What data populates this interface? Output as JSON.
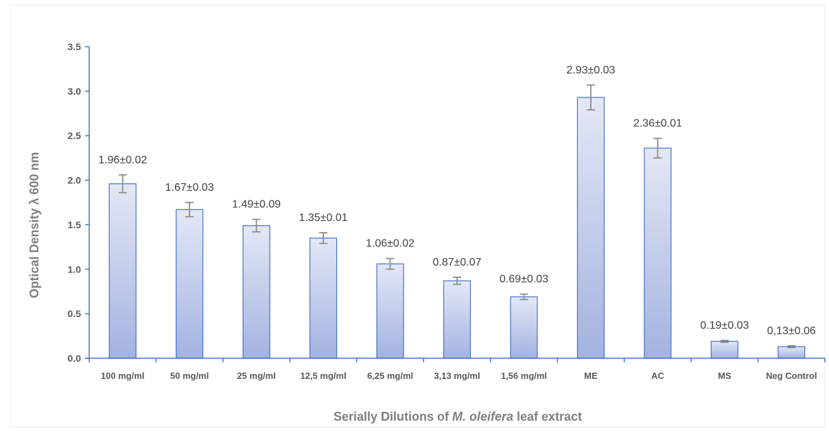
{
  "chart_data": {
    "type": "bar",
    "xlabel_parts": [
      "Serially Dilutions of ",
      "M. oleifera",
      " leaf extract"
    ],
    "ylabel": "Optical Density λ 600 nm",
    "ylim": [
      0,
      3.5
    ],
    "yticks": [
      "0.0",
      "0.5",
      "1.0",
      "1.5",
      "2.0",
      "2.5",
      "3.0",
      "3.5"
    ],
    "categories": [
      "100 mg/ml",
      "50 mg/ml",
      "25 mg/ml",
      "12,5 mg/ml",
      "6,25 mg/ml",
      "3,13 mg/ml",
      "1,56 mg/ml",
      "ME",
      "AC",
      "MS",
      "Neg Control"
    ],
    "values": [
      1.96,
      1.67,
      1.49,
      1.35,
      1.06,
      0.87,
      0.69,
      2.93,
      2.36,
      0.19,
      0.13
    ],
    "errors": [
      0.1,
      0.08,
      0.07,
      0.06,
      0.06,
      0.04,
      0.03,
      0.14,
      0.11,
      0.01,
      0.01
    ],
    "data_labels": [
      "1.96±0.02",
      "1.67±0.03",
      "1.49±0.09",
      "1.35±0.01",
      "1.06±0.02",
      "0.87±0.07",
      "0.69±0.03",
      "2.93±0.03",
      "2.36±0.01",
      "0.19±0.03",
      "0,13±0.06"
    ],
    "grid": false,
    "legend": "none",
    "colors": {
      "bar_top": "#e4e8f6",
      "bar_bottom": "#a3b2e0",
      "bar_edge": "#4472c4",
      "axis": "#4472c4",
      "error": "#8c8c8c"
    }
  }
}
